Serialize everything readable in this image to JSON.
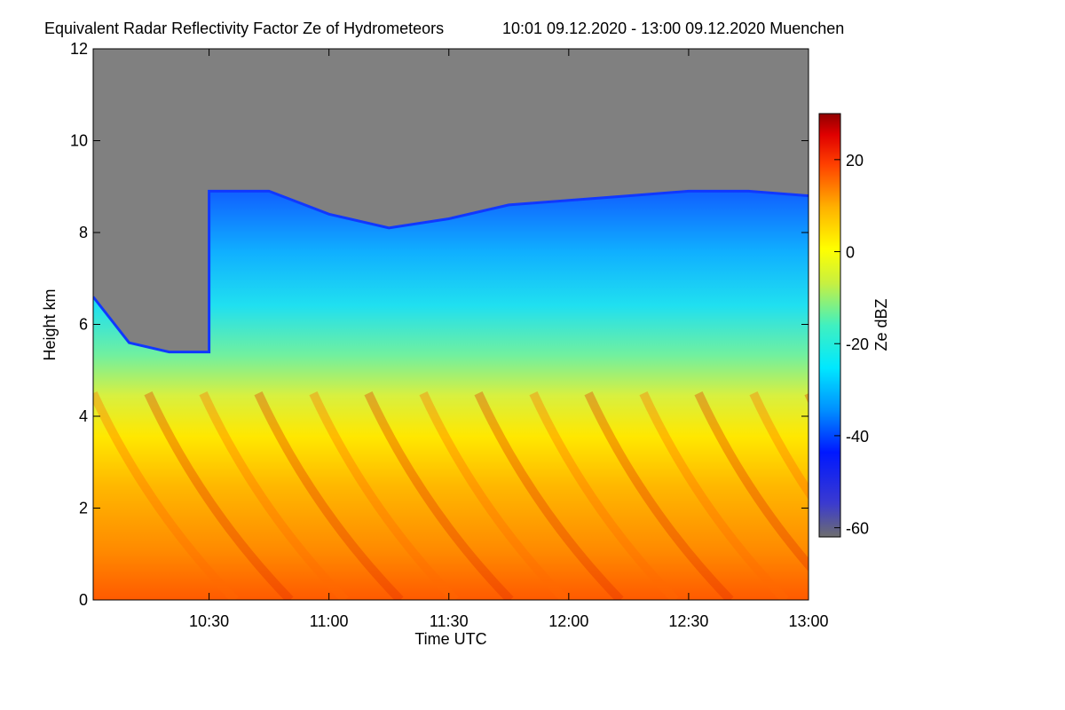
{
  "chart_data": {
    "type": "heatmap",
    "title": "Equivalent Radar Reflectivity Factor Ze of Hydrometeors",
    "subtitle": "10:01 09.12.2020 - 13:00 09.12.2020 Muenchen",
    "xlabel": "Time UTC",
    "ylabel": "Height km",
    "xlim": [
      "10:01",
      "13:00"
    ],
    "ylim": [
      0,
      12
    ],
    "x_ticks": [
      "10:30",
      "11:00",
      "11:30",
      "12:00",
      "12:30",
      "13:00"
    ],
    "y_ticks": [
      "0",
      "2",
      "4",
      "6",
      "8",
      "10",
      "12"
    ],
    "colorbar": {
      "label": "Ze dBZ",
      "range": [
        -62,
        30
      ],
      "ticks": [
        "20",
        "0",
        "-20",
        "-40",
        "-60"
      ],
      "no_signal_color": "#808080"
    },
    "cloud_top_km": [
      {
        "time": "10:01",
        "top": 6.6
      },
      {
        "time": "10:10",
        "top": 5.6
      },
      {
        "time": "10:20",
        "top": 5.4
      },
      {
        "time": "10:30",
        "top": 5.4
      },
      {
        "time": "10:30",
        "top": 8.9
      },
      {
        "time": "10:45",
        "top": 8.9
      },
      {
        "time": "11:00",
        "top": 8.4
      },
      {
        "time": "11:15",
        "top": 8.1
      },
      {
        "time": "11:30",
        "top": 8.3
      },
      {
        "time": "11:45",
        "top": 8.6
      },
      {
        "time": "12:00",
        "top": 8.7
      },
      {
        "time": "12:15",
        "top": 8.8
      },
      {
        "time": "12:30",
        "top": 8.9
      },
      {
        "time": "12:45",
        "top": 8.9
      },
      {
        "time": "13:00",
        "top": 8.8
      }
    ],
    "layers_dBZ": [
      {
        "height_km": 0.5,
        "ze": 12
      },
      {
        "height_km": 2,
        "ze": 8
      },
      {
        "height_km": 4,
        "ze": 2
      },
      {
        "height_km": 5.5,
        "ze": -10
      },
      {
        "height_km": 7,
        "ze": -22
      },
      {
        "height_km": 8.5,
        "ze": -32
      }
    ]
  }
}
